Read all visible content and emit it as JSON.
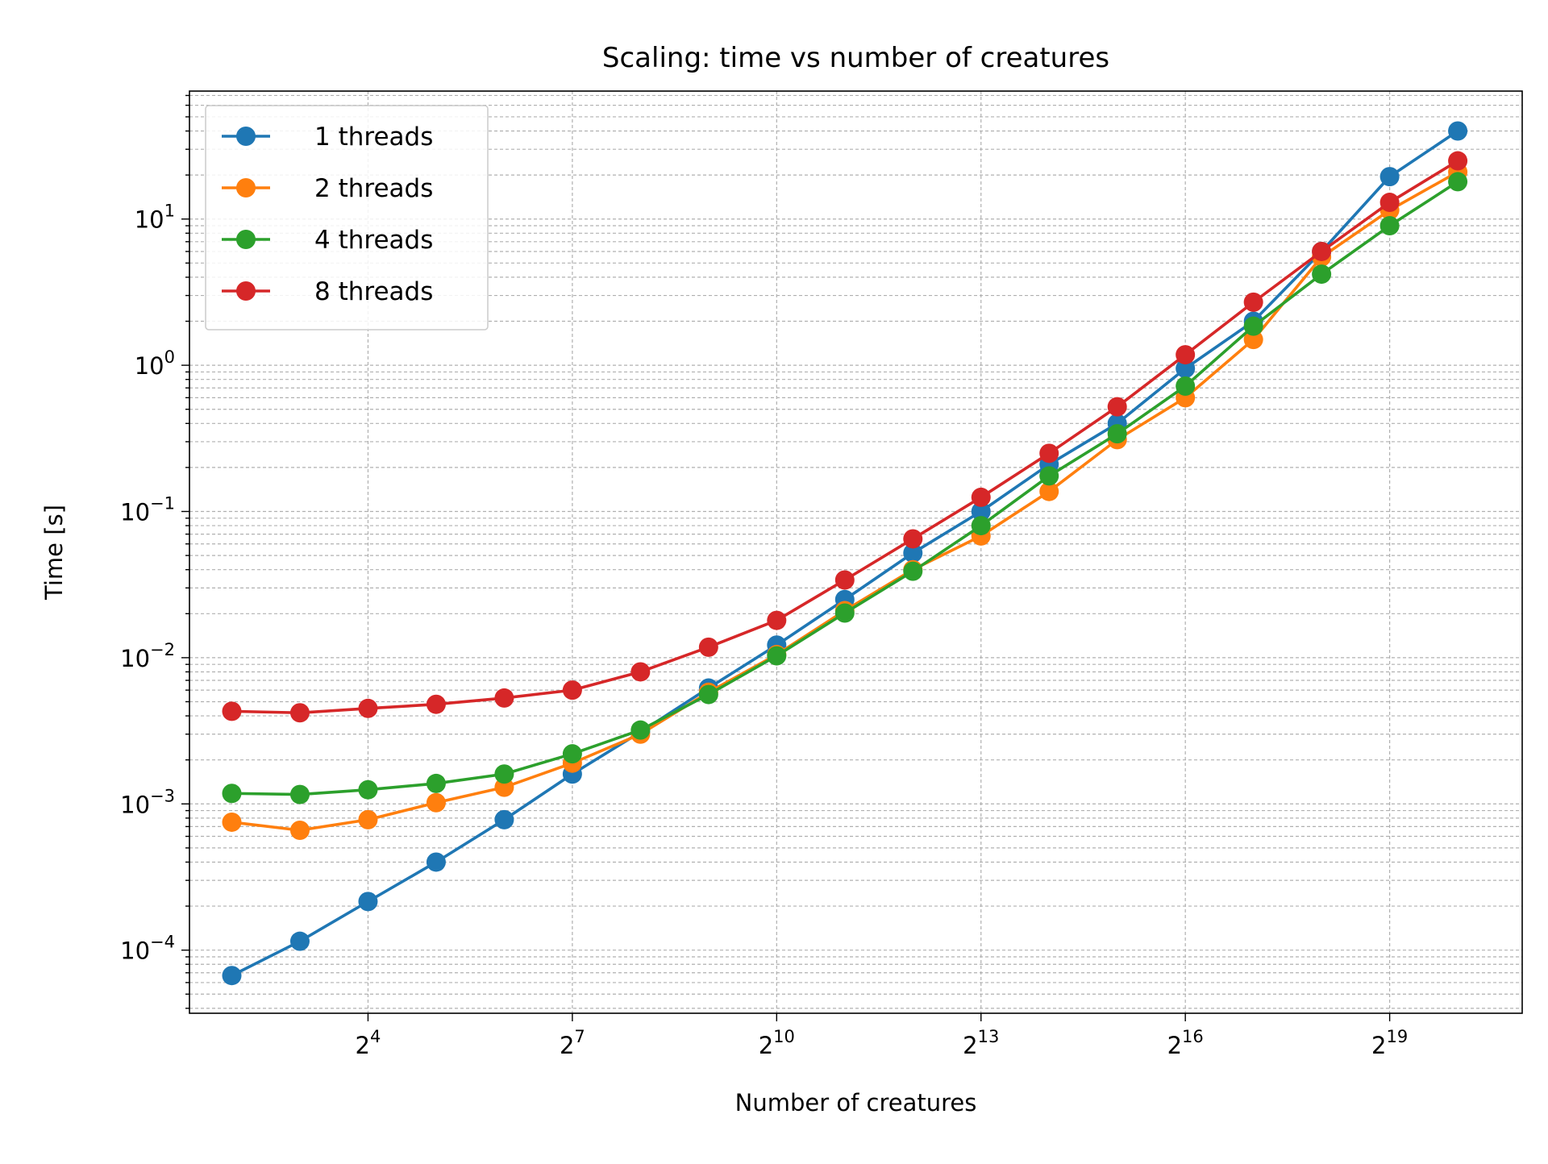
{
  "chart_data": {
    "type": "line",
    "title": "Scaling: time vs number of creatures",
    "xlabel": "Number of creatures",
    "ylabel": "Time [s]",
    "xscale": "log2",
    "yscale": "log10",
    "x": [
      4,
      8,
      16,
      32,
      64,
      128,
      256,
      512,
      1024,
      2048,
      4096,
      8192,
      16384,
      32768,
      65536,
      131072,
      262144,
      524288,
      1048576
    ],
    "xlim": [
      2.6,
      2020000
    ],
    "ylim": [
      3.7e-05,
      75
    ],
    "x_tick_labels": [
      {
        "base": "2",
        "exp": "4"
      },
      {
        "base": "2",
        "exp": "7"
      },
      {
        "base": "2",
        "exp": "10"
      },
      {
        "base": "2",
        "exp": "13"
      },
      {
        "base": "2",
        "exp": "16"
      },
      {
        "base": "2",
        "exp": "19"
      }
    ],
    "y_tick_labels": [
      {
        "base": "10",
        "exp": "−4"
      },
      {
        "base": "10",
        "exp": "−3"
      },
      {
        "base": "10",
        "exp": "−2"
      },
      {
        "base": "10",
        "exp": "−1"
      },
      {
        "base": "10",
        "exp": "0"
      },
      {
        "base": "10",
        "exp": "1"
      }
    ],
    "grid": true,
    "legend_position": "top-left",
    "series": [
      {
        "name": "1 threads",
        "color": "#1f77b4",
        "values": [
          6.7e-05,
          0.000115,
          0.000215,
          0.0004,
          0.00078,
          0.0016,
          0.0031,
          0.0062,
          0.0122,
          0.025,
          0.052,
          0.1,
          0.21,
          0.4,
          0.95,
          2.0,
          6.0,
          19.5,
          40.0
        ]
      },
      {
        "name": "2 threads",
        "color": "#ff7f0e",
        "values": [
          0.00075,
          0.00066,
          0.00078,
          0.00102,
          0.0013,
          0.0019,
          0.003,
          0.0058,
          0.0105,
          0.021,
          0.04,
          0.068,
          0.137,
          0.31,
          0.6,
          1.5,
          5.5,
          11.5,
          21.0
        ]
      },
      {
        "name": "4 threads",
        "color": "#2ca02c",
        "values": [
          0.00118,
          0.00116,
          0.00125,
          0.00138,
          0.0016,
          0.0022,
          0.0032,
          0.0056,
          0.0103,
          0.0202,
          0.039,
          0.08,
          0.175,
          0.34,
          0.72,
          1.85,
          4.2,
          9.0,
          18.0
        ]
      },
      {
        "name": "8 threads",
        "color": "#d62728",
        "values": [
          0.0043,
          0.0042,
          0.0045,
          0.0048,
          0.0053,
          0.006,
          0.008,
          0.0118,
          0.018,
          0.034,
          0.065,
          0.125,
          0.25,
          0.52,
          1.18,
          2.7,
          6.0,
          13.0,
          25.0
        ]
      }
    ]
  }
}
